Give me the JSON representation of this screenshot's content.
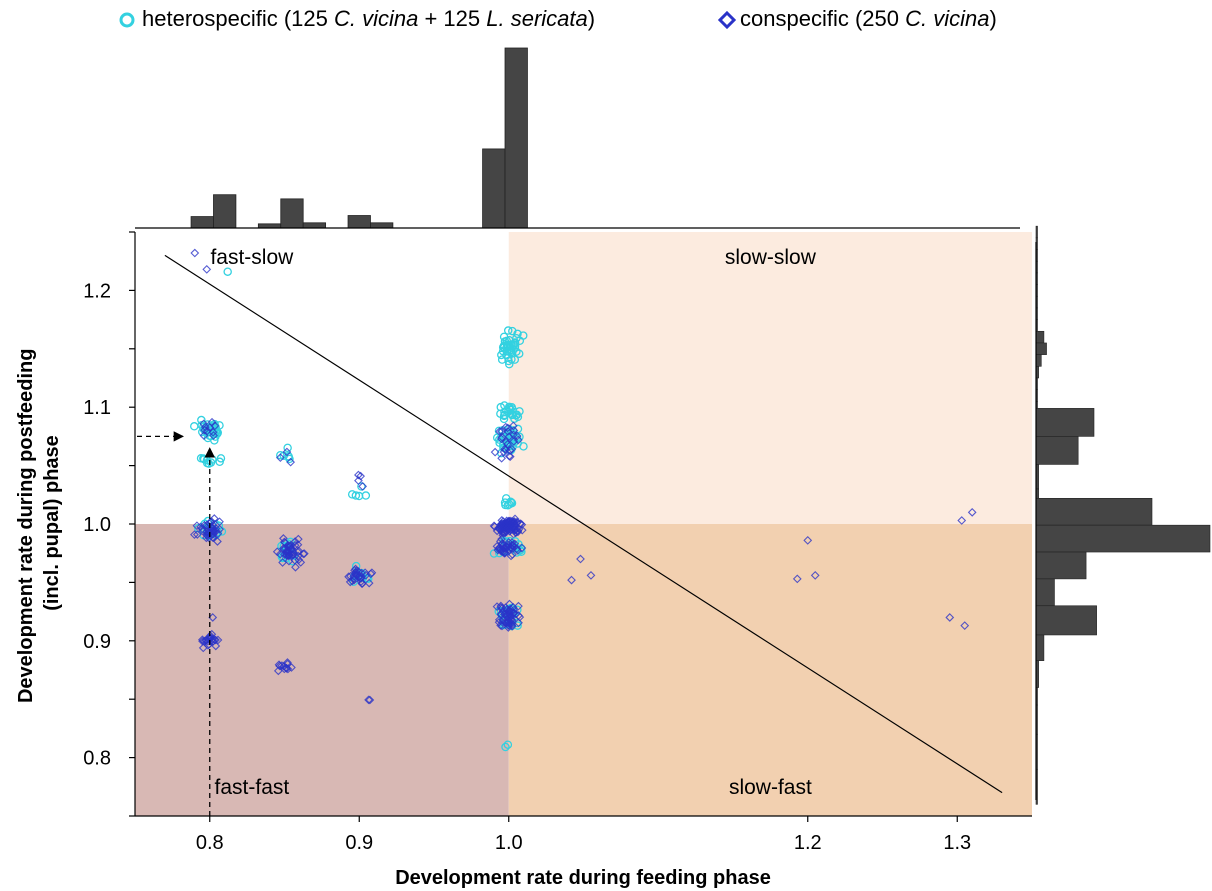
{
  "colors": {
    "heterospecific": "#33d1e0",
    "conspecific": "#2a33c8",
    "fast_fast": "#d8b8b4",
    "slow_fast": "#f2d0b0",
    "slow_slow": "#fcebdf",
    "histogram": "#454545"
  },
  "legend": {
    "heterospecific": {
      "symbol": "circle-icon",
      "parts": [
        "heterospecific (125 ",
        "C. vicina",
        " + 125 ",
        "L. sericata",
        ")"
      ]
    },
    "conspecific": {
      "symbol": "diamond-icon",
      "parts": [
        "conspecific (250 ",
        "C. vicina",
        ")"
      ]
    }
  },
  "chart_data": {
    "type": "scatter",
    "xlabel": "Development rate during feeding phase",
    "ylabel_lines": [
      "Development rate during postfeeding",
      "(incl. pupal) phase"
    ],
    "xlim": [
      0.75,
      1.35
    ],
    "ylim": [
      0.75,
      1.25
    ],
    "x_ticks": [
      0.8,
      0.9,
      1.0,
      1.2,
      1.3
    ],
    "y_ticks": [
      0.8,
      0.9,
      1.0,
      1.1,
      1.2
    ],
    "quadrants": [
      {
        "label": "fast-slow",
        "x": [
          0.75,
          1.0
        ],
        "y": [
          1.0,
          1.25
        ],
        "color_key": "none"
      },
      {
        "label": "slow-slow",
        "x": [
          1.0,
          1.35
        ],
        "y": [
          1.0,
          1.25
        ],
        "color_key": "slow_slow"
      },
      {
        "label": "fast-fast",
        "x": [
          0.75,
          1.0
        ],
        "y": [
          0.75,
          1.0
        ],
        "color_key": "fast_fast"
      },
      {
        "label": "slow-fast",
        "x": [
          1.0,
          1.35
        ],
        "y": [
          0.75,
          1.0
        ],
        "color_key": "slow_fast"
      }
    ],
    "trend_line": {
      "x": [
        0.77,
        1.33
      ],
      "y": [
        1.23,
        0.77
      ]
    },
    "annotation": {
      "x": 0.8,
      "y": 1.075,
      "style": "dashed-arrows"
    },
    "clusters": [
      {
        "series": "heterospecific",
        "x": 0.8,
        "y": 1.08,
        "n": 40,
        "dx": 0.012,
        "dy": 0.012
      },
      {
        "series": "heterospecific",
        "x": 0.8,
        "y": 1.055,
        "n": 10,
        "dx": 0.01,
        "dy": 0.005
      },
      {
        "series": "conspecific",
        "x": 0.8,
        "y": 1.08,
        "n": 10,
        "dx": 0.01,
        "dy": 0.01
      },
      {
        "series": "heterospecific",
        "x": 0.8,
        "y": 0.995,
        "n": 15,
        "dx": 0.012,
        "dy": 0.012
      },
      {
        "series": "conspecific",
        "x": 0.8,
        "y": 0.995,
        "n": 40,
        "dx": 0.012,
        "dy": 0.012
      },
      {
        "series": "conspecific",
        "x": 0.8,
        "y": 0.9,
        "n": 22,
        "dx": 0.012,
        "dy": 0.008
      },
      {
        "series": "heterospecific",
        "x": 0.85,
        "y": 1.06,
        "n": 6,
        "dx": 0.008,
        "dy": 0.01
      },
      {
        "series": "conspecific",
        "x": 0.85,
        "y": 1.06,
        "n": 3,
        "dx": 0.008,
        "dy": 0.01
      },
      {
        "series": "heterospecific",
        "x": 0.855,
        "y": 0.975,
        "n": 15,
        "dx": 0.012,
        "dy": 0.015
      },
      {
        "series": "conspecific",
        "x": 0.855,
        "y": 0.975,
        "n": 45,
        "dx": 0.012,
        "dy": 0.015
      },
      {
        "series": "conspecific",
        "x": 0.85,
        "y": 0.878,
        "n": 12,
        "dx": 0.008,
        "dy": 0.008
      },
      {
        "series": "heterospecific",
        "x": 0.9,
        "y": 1.03,
        "n": 5,
        "dx": 0.01,
        "dy": 0.012
      },
      {
        "series": "conspecific",
        "x": 0.9,
        "y": 1.035,
        "n": 4,
        "dx": 0.006,
        "dy": 0.01
      },
      {
        "series": "heterospecific",
        "x": 0.9,
        "y": 0.955,
        "n": 8,
        "dx": 0.012,
        "dy": 0.012
      },
      {
        "series": "conspecific",
        "x": 0.9,
        "y": 0.955,
        "n": 30,
        "dx": 0.012,
        "dy": 0.012
      },
      {
        "series": "conspecific",
        "x": 0.905,
        "y": 0.852,
        "n": 2,
        "dx": 0.003,
        "dy": 0.004
      },
      {
        "series": "heterospecific",
        "x": 1.0,
        "y": 1.15,
        "n": 40,
        "dx": 0.012,
        "dy": 0.022
      },
      {
        "series": "heterospecific",
        "x": 1.0,
        "y": 1.095,
        "n": 20,
        "dx": 0.012,
        "dy": 0.01
      },
      {
        "series": "heterospecific",
        "x": 1.0,
        "y": 1.07,
        "n": 40,
        "dx": 0.012,
        "dy": 0.022
      },
      {
        "series": "conspecific",
        "x": 1.0,
        "y": 1.07,
        "n": 25,
        "dx": 0.012,
        "dy": 0.022
      },
      {
        "series": "heterospecific",
        "x": 1.0,
        "y": 1.02,
        "n": 8,
        "dx": 0.01,
        "dy": 0.008
      },
      {
        "series": "conspecific",
        "x": 1.0,
        "y": 0.998,
        "n": 90,
        "dx": 0.012,
        "dy": 0.01
      },
      {
        "series": "heterospecific",
        "x": 1.0,
        "y": 0.98,
        "n": 20,
        "dx": 0.012,
        "dy": 0.012
      },
      {
        "series": "conspecific",
        "x": 1.0,
        "y": 0.98,
        "n": 40,
        "dx": 0.012,
        "dy": 0.012
      },
      {
        "series": "heterospecific",
        "x": 1.0,
        "y": 0.92,
        "n": 25,
        "dx": 0.012,
        "dy": 0.018
      },
      {
        "series": "conspecific",
        "x": 1.0,
        "y": 0.92,
        "n": 55,
        "dx": 0.012,
        "dy": 0.018
      },
      {
        "series": "heterospecific",
        "x": 1.0,
        "y": 0.81,
        "n": 2,
        "dx": 0.005,
        "dy": 0.002
      }
    ],
    "points": [
      {
        "series": "conspecific",
        "x": 0.79,
        "y": 1.232
      },
      {
        "series": "conspecific",
        "x": 0.798,
        "y": 1.218
      },
      {
        "series": "heterospecific",
        "x": 0.812,
        "y": 1.216
      },
      {
        "series": "conspecific",
        "x": 0.802,
        "y": 0.92
      },
      {
        "series": "conspecific",
        "x": 1.042,
        "y": 0.952
      },
      {
        "series": "conspecific",
        "x": 1.048,
        "y": 0.97
      },
      {
        "series": "conspecific",
        "x": 1.055,
        "y": 0.956
      },
      {
        "series": "conspecific",
        "x": 1.193,
        "y": 0.953
      },
      {
        "series": "conspecific",
        "x": 1.2,
        "y": 0.986
      },
      {
        "series": "conspecific",
        "x": 1.205,
        "y": 0.956
      },
      {
        "series": "conspecific",
        "x": 1.295,
        "y": 0.92
      },
      {
        "series": "conspecific",
        "x": 1.303,
        "y": 1.003
      },
      {
        "series": "conspecific",
        "x": 1.305,
        "y": 0.913
      },
      {
        "series": "conspecific",
        "x": 1.31,
        "y": 1.01
      }
    ],
    "top_histogram": {
      "bins": [
        {
          "x0": 0.7875,
          "x1": 0.8025,
          "count": 11
        },
        {
          "x0": 0.8025,
          "x1": 0.8175,
          "count": 32
        },
        {
          "x0": 0.8325,
          "x1": 0.8475,
          "count": 4
        },
        {
          "x0": 0.8475,
          "x1": 0.8625,
          "count": 28
        },
        {
          "x0": 0.8625,
          "x1": 0.8775,
          "count": 5
        },
        {
          "x0": 0.8925,
          "x1": 0.9075,
          "count": 12
        },
        {
          "x0": 0.9075,
          "x1": 0.9225,
          "count": 5
        },
        {
          "x0": 0.9825,
          "x1": 0.9975,
          "count": 76
        },
        {
          "x0": 0.9975,
          "x1": 1.0125,
          "count": 173
        }
      ],
      "axis_x": [
        0.75,
        1.31
      ]
    },
    "right_histogram": {
      "bins": [
        {
          "y0": 1.245,
          "y1": 1.255,
          "count": 0.3
        },
        {
          "y0": 1.235,
          "y1": 1.245,
          "count": 0.3
        },
        {
          "y0": 1.225,
          "y1": 1.235,
          "count": 0.3
        },
        {
          "y0": 1.215,
          "y1": 1.225,
          "count": 0.3
        },
        {
          "y0": 1.205,
          "y1": 1.215,
          "count": 0.3
        },
        {
          "y0": 1.195,
          "y1": 1.205,
          "count": 0.3
        },
        {
          "y0": 1.185,
          "y1": 1.195,
          "count": 0.3
        },
        {
          "y0": 1.175,
          "y1": 1.185,
          "count": 0.3
        },
        {
          "y0": 1.165,
          "y1": 1.175,
          "count": 0.3
        },
        {
          "y0": 1.155,
          "y1": 1.165,
          "count": 3
        },
        {
          "y0": 1.145,
          "y1": 1.155,
          "count": 4
        },
        {
          "y0": 1.135,
          "y1": 1.145,
          "count": 2
        },
        {
          "y0": 1.125,
          "y1": 1.135,
          "count": 1
        },
        {
          "y0": 1.115,
          "y1": 1.125,
          "count": 0.4
        },
        {
          "y0": 1.105,
          "y1": 1.115,
          "count": 0.4
        },
        {
          "y0": 1.095,
          "y1": 1.105,
          "count": 0.4
        },
        {
          "y0": 1.075,
          "y1": 1.099,
          "count": 22
        },
        {
          "y0": 1.051,
          "y1": 1.075,
          "count": 16
        },
        {
          "y0": 1.03,
          "y1": 1.051,
          "count": 1
        },
        {
          "y0": 1.02,
          "y1": 1.03,
          "count": 1
        },
        {
          "y0": 0.999,
          "y1": 1.022,
          "count": 44
        },
        {
          "y0": 0.976,
          "y1": 0.999,
          "count": 66
        },
        {
          "y0": 0.953,
          "y1": 0.976,
          "count": 19
        },
        {
          "y0": 0.93,
          "y1": 0.953,
          "count": 7
        },
        {
          "y0": 0.905,
          "y1": 0.93,
          "count": 23
        },
        {
          "y0": 0.883,
          "y1": 0.905,
          "count": 3
        },
        {
          "y0": 0.86,
          "y1": 0.883,
          "count": 1
        },
        {
          "y0": 0.845,
          "y1": 0.86,
          "count": 0.5
        },
        {
          "y0": 0.82,
          "y1": 0.845,
          "count": 0.4
        },
        {
          "y0": 0.79,
          "y1": 0.82,
          "count": 0.3
        },
        {
          "y0": 0.76,
          "y1": 0.79,
          "count": 0.3
        }
      ],
      "axis_y": [
        0.74,
        1.26
      ]
    }
  }
}
